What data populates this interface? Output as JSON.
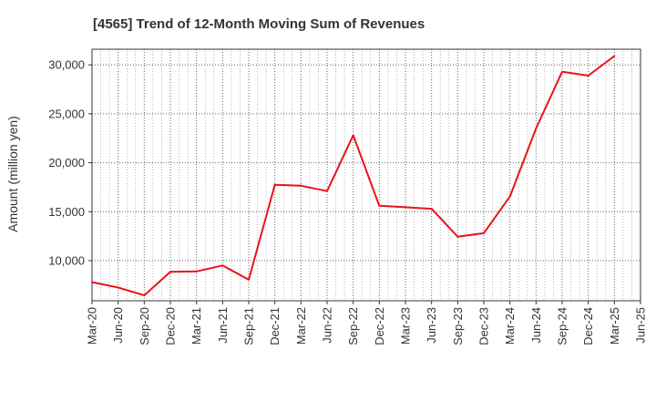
{
  "chart_data": {
    "type": "line",
    "title": "[4565]  Trend of 12-Month Moving Sum of Revenues",
    "xlabel": "",
    "ylabel": "Amount (million yen)",
    "x_ticks": [
      "Mar-20",
      "Jun-20",
      "Sep-20",
      "Dec-20",
      "Mar-21",
      "Jun-21",
      "Sep-21",
      "Dec-21",
      "Mar-22",
      "Jun-22",
      "Sep-22",
      "Dec-22",
      "Mar-23",
      "Jun-23",
      "Sep-23",
      "Dec-23",
      "Mar-24",
      "Jun-24",
      "Sep-24",
      "Dec-24",
      "Mar-25",
      "Jun-25"
    ],
    "y_ticks": [
      10000,
      15000,
      20000,
      25000,
      30000
    ],
    "y_tick_labels": [
      "10,000",
      "15,000",
      "20,000",
      "25,000",
      "30,000"
    ],
    "ylim": [
      5900,
      31600
    ],
    "grid": true,
    "line_color": "#e8141b",
    "series": [
      {
        "x": [
          "Mar-20",
          "Jun-20",
          "Sep-20",
          "Dec-20",
          "Mar-21",
          "Jun-21",
          "Sep-21",
          "Dec-21",
          "Mar-22",
          "Jun-22",
          "Sep-22",
          "Dec-22",
          "Mar-23",
          "Jun-23",
          "Sep-23",
          "Dec-23",
          "Mar-24",
          "Jun-24",
          "Sep-24",
          "Dec-24",
          "Mar-25"
        ],
        "values": [
          7800,
          7250,
          6450,
          8850,
          8900,
          9500,
          8050,
          17750,
          17650,
          17100,
          22800,
          15600,
          15450,
          15300,
          12450,
          12800,
          16550,
          23500,
          29300,
          28900,
          30900
        ]
      }
    ]
  }
}
